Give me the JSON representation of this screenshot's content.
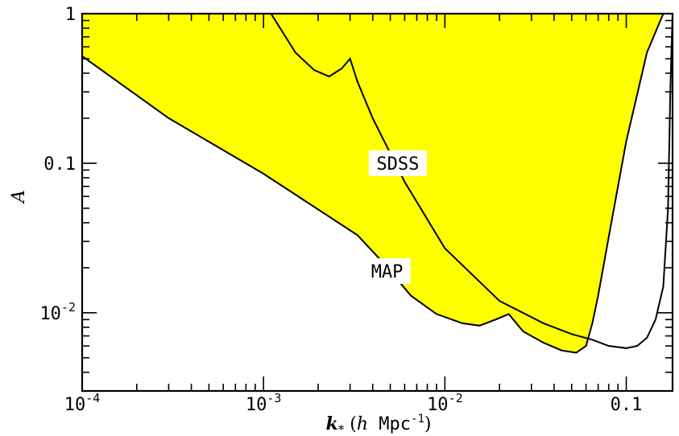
{
  "chart_data": {
    "type": "area",
    "xscale": "log",
    "yscale": "log",
    "xlim": [
      0.0001,
      0.18
    ],
    "ylim": [
      0.003,
      1
    ],
    "xlabel": {
      "var": "k",
      "sub": "*",
      "open": " (",
      "h": "h",
      "unit": " Mpc",
      "exp": "-1",
      "close": ")"
    },
    "ylabel": "A",
    "xticks": [
      {
        "value": 0.0001,
        "base": "10",
        "exp": "-4"
      },
      {
        "value": 0.001,
        "base": "10",
        "exp": "-3"
      },
      {
        "value": 0.01,
        "base": "10",
        "exp": "-2"
      },
      {
        "value": 0.1,
        "base": "0.1",
        "exp": ""
      }
    ],
    "yticks": [
      {
        "value": 1,
        "base": "1",
        "exp": ""
      },
      {
        "value": 0.1,
        "base": "0.1",
        "exp": ""
      },
      {
        "value": 0.01,
        "base": "10",
        "exp": "-2"
      }
    ],
    "fill_color": "#ffff00",
    "line_color": "#000000",
    "grid": false,
    "series": [
      {
        "name": "MAP",
        "label_pos": {
          "x": 0.0048,
          "y": 0.019
        },
        "x": [
          0.0001,
          0.0003,
          0.001,
          0.0033,
          0.0045,
          0.0065,
          0.009,
          0.0125,
          0.0155,
          0.019,
          0.0225,
          0.027,
          0.035,
          0.044,
          0.053,
          0.06,
          0.065,
          0.07,
          0.08,
          0.1,
          0.13,
          0.16,
          0.18
        ],
        "y": [
          0.52,
          0.2,
          0.085,
          0.033,
          0.022,
          0.013,
          0.0098,
          0.0085,
          0.0082,
          0.009,
          0.0098,
          0.0075,
          0.0063,
          0.0056,
          0.0054,
          0.006,
          0.0085,
          0.013,
          0.032,
          0.14,
          0.55,
          1.0,
          1.0
        ]
      },
      {
        "name": "SDSS",
        "label_pos": {
          "x": 0.0055,
          "y": 0.1
        },
        "x": [
          0.0011,
          0.0015,
          0.0019,
          0.0023,
          0.0027,
          0.003,
          0.0033,
          0.004,
          0.006,
          0.01,
          0.02,
          0.035,
          0.05,
          0.065,
          0.08,
          0.1,
          0.115,
          0.13,
          0.145,
          0.16,
          0.17,
          0.175,
          0.18
        ],
        "y": [
          1.0,
          0.55,
          0.42,
          0.38,
          0.43,
          0.5,
          0.35,
          0.2,
          0.075,
          0.027,
          0.012,
          0.0085,
          0.0072,
          0.0066,
          0.006,
          0.0058,
          0.006,
          0.0068,
          0.009,
          0.015,
          0.05,
          0.3,
          1.0
        ]
      }
    ]
  }
}
